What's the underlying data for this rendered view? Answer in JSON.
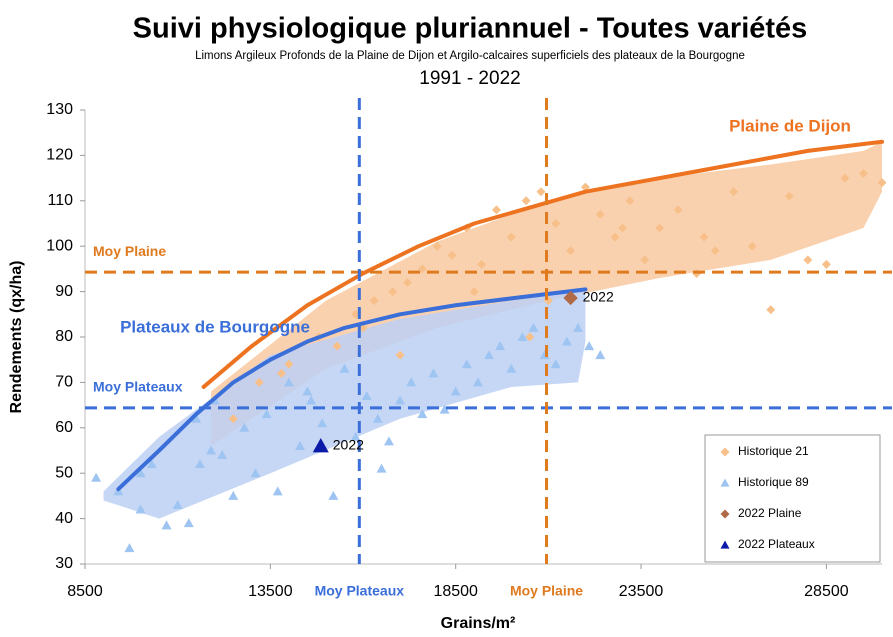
{
  "chart_data": {
    "type": "scatter",
    "title": "Suivi physiologique pluriannuel - Toutes variétés",
    "subtitle": "Limons Argileux Profonds de la Plaine de Dijon et Argilo-calcaires superficiels des plateaux de la Bourgogne",
    "period": "1991 - 2022",
    "x_label": "Grains/m²",
    "y_label": "Rendements (qx/ha)",
    "xlim": [
      8500,
      30000
    ],
    "ylim": [
      30,
      130
    ],
    "xticks": [
      8500,
      13500,
      18500,
      23500,
      28500
    ],
    "yticks": [
      30,
      40,
      50,
      60,
      70,
      80,
      90,
      100,
      110,
      120,
      130
    ],
    "bands": [
      {
        "color": "#f9c9a0",
        "x": [
          11900,
          15000,
          18000,
          21000,
          24000,
          27000,
          29500,
          30000
        ],
        "upper": [
          68,
          88,
          101,
          110,
          115,
          118,
          121,
          123
        ],
        "lower": [
          56,
          73,
          82,
          88,
          93,
          97,
          104,
          112
        ]
      },
      {
        "color": "#bcd0f5",
        "x": [
          9000,
          10500,
          13500,
          17000,
          20000,
          21800,
          22000
        ],
        "upper": [
          46,
          58,
          76,
          84,
          88,
          90,
          90.4
        ],
        "lower": [
          44,
          40,
          50,
          62,
          69,
          70,
          79
        ]
      }
    ],
    "curves": [
      {
        "name": "Plaine de Dijon",
        "color": "#ed7320",
        "x": [
          11700,
          13000,
          14500,
          16000,
          17500,
          19000,
          20500,
          22000,
          24000,
          26000,
          28000,
          30000
        ],
        "values": [
          69,
          78,
          87,
          94,
          100,
          105,
          108.5,
          112,
          115,
          118,
          121,
          123
        ]
      },
      {
        "name": "Plateaux de Bourgogne",
        "color": "#3a6ed8",
        "x": [
          9400,
          10500,
          11500,
          12500,
          13500,
          14500,
          15500,
          17000,
          18500,
          20000,
          21000,
          22000
        ],
        "values": [
          46.5,
          55,
          63,
          70,
          75,
          79,
          82,
          85,
          87,
          88.5,
          89.5,
          90.5
        ]
      }
    ],
    "ref_lines": [
      {
        "label": "Moy Plaine",
        "orientation": "h",
        "value": 94.3,
        "color": "#e07a1f"
      },
      {
        "label": "Moy Plateaux",
        "orientation": "h",
        "value": 64.4,
        "color": "#3a6ed8"
      },
      {
        "label": "Moy Plateaux",
        "orientation": "v",
        "value": 15900,
        "color": "#3a6ed8"
      },
      {
        "label": "Moy Plaine",
        "orientation": "v",
        "value": 20950,
        "color": "#e07a1f"
      }
    ],
    "series": [
      {
        "name": "Historique 21",
        "color": "#f7c08a",
        "marker": "diamond",
        "x": [
          12500,
          13200,
          14000,
          14800,
          15300,
          15800,
          16300,
          16800,
          17200,
          17600,
          18000,
          18400,
          18800,
          19200,
          19600,
          20000,
          20400,
          20800,
          21200,
          21600,
          22000,
          22400,
          22800,
          23200,
          23600,
          24000,
          24500,
          25000,
          25500,
          26000,
          26500,
          27000,
          27500,
          28000,
          28500,
          29000,
          29500,
          30000,
          17000,
          19000,
          21000,
          23000,
          25200,
          13800,
          16000,
          20500
        ],
        "values": [
          62,
          70,
          74,
          80,
          78,
          85,
          88,
          90,
          92,
          95,
          100,
          98,
          104,
          96,
          108,
          102,
          110,
          112,
          105,
          99,
          113,
          107,
          102,
          110,
          97,
          104,
          108,
          94,
          99,
          112,
          100,
          86,
          111,
          97,
          96,
          115,
          116,
          114,
          76,
          90,
          88,
          104,
          102,
          72,
          82,
          80
        ]
      },
      {
        "name": "Historique 89",
        "color": "#9ec4f2",
        "marker": "triangle",
        "x": [
          8800,
          9400,
          9700,
          10000,
          10300,
          10700,
          11000,
          11300,
          11600,
          11900,
          12200,
          12500,
          12800,
          13100,
          13400,
          13700,
          14000,
          14300,
          14600,
          14900,
          15200,
          15500,
          15800,
          16100,
          16400,
          16700,
          17000,
          17300,
          17600,
          17900,
          18200,
          18500,
          18800,
          19100,
          19400,
          19700,
          20000,
          20300,
          20600,
          20900,
          21200,
          21500,
          21800,
          22100,
          22400,
          12000,
          14500,
          16500,
          10000,
          11500
        ],
        "values": [
          49,
          46,
          33.5,
          50,
          52,
          38.5,
          43,
          39,
          52,
          55,
          54,
          45,
          60,
          50,
          63,
          46,
          70,
          56,
          66,
          61,
          45,
          73,
          58,
          67,
          62,
          57,
          66,
          70,
          63,
          72,
          64,
          68,
          74,
          70,
          76,
          78,
          73,
          80,
          82,
          76,
          74,
          79,
          82,
          78,
          76,
          66,
          68,
          51,
          42,
          62
        ]
      },
      {
        "name": "2022 Plaine",
        "color": "#b06a47",
        "marker": "diamond",
        "point_label": "2022",
        "x": [
          21600
        ],
        "values": [
          88.6
        ]
      },
      {
        "name": "2022 Plateaux",
        "color": "#0c1aa8",
        "marker": "triangle",
        "point_label": "2022",
        "x": [
          14860
        ],
        "values": [
          56
        ]
      }
    ]
  }
}
